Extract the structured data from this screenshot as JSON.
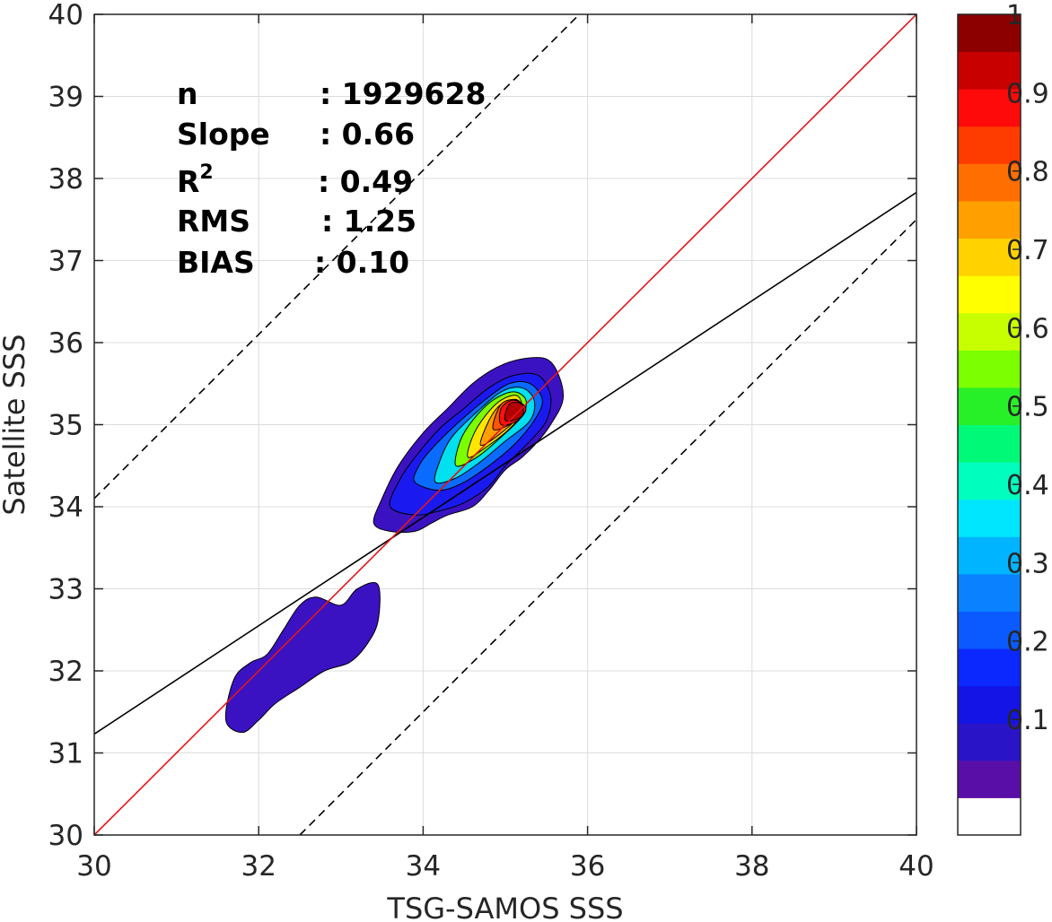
{
  "chart_data": {
    "type": "contour",
    "xlabel": "TSG-SAMOS SSS",
    "ylabel": "Satellite SSS",
    "xlim": [
      30,
      40
    ],
    "ylim": [
      30,
      40
    ],
    "x_ticks": [
      "30",
      "32",
      "34",
      "36",
      "38",
      "40"
    ],
    "y_ticks": [
      "30",
      "31",
      "32",
      "33",
      "34",
      "35",
      "36",
      "37",
      "38",
      "39",
      "40"
    ],
    "grid": true,
    "stats": {
      "n_label": "n",
      "n_value": ": 1929628",
      "slope_label": "Slope",
      "slope_value": ": 0.66",
      "r2_label": "R",
      "r2_sup": "2",
      "r2_value": ": 0.49",
      "rms_label": "RMS",
      "rms_value": ": 1.25",
      "bias_label": "BIAS",
      "bias_value": ": 0.10"
    },
    "lines": {
      "one_to_one": {
        "slope": 1,
        "intercept": 0,
        "color": "#e4141b"
      },
      "fit": {
        "slope": 0.66,
        "intercept": 11.43,
        "color": "#000000"
      },
      "upper_bound": {
        "slope": 1,
        "intercept": 4.1,
        "color": "#000000",
        "style": "dashed"
      },
      "lower_bound": {
        "slope": 1,
        "intercept": -2.5,
        "color": "#000000",
        "style": "dashed"
      }
    },
    "colorbar": {
      "ticks": [
        "0.1",
        "0.2",
        "0.3",
        "0.4",
        "0.5",
        "0.6",
        "0.7",
        "0.8",
        "0.9",
        "1"
      ],
      "levels": [
        0,
        0.05,
        0.1,
        0.15,
        0.2,
        0.25,
        0.3,
        0.35,
        0.4,
        0.45,
        0.5,
        0.55,
        0.6,
        0.65,
        0.7,
        0.75,
        0.8,
        0.85,
        0.9,
        0.95,
        1
      ],
      "colors": [
        "#ffffff",
        "#5a0ea8",
        "#2a14c8",
        "#1414e6",
        "#0a28ff",
        "#0a5aff",
        "#0a82ff",
        "#00b4ff",
        "#00e6ff",
        "#00ffbe",
        "#00fa78",
        "#28f028",
        "#7cff00",
        "#c8ff00",
        "#ffff00",
        "#ffd200",
        "#ffa000",
        "#ff6e00",
        "#ff3c00",
        "#ff0a0a",
        "#c80000",
        "#8c0000"
      ]
    },
    "contours": {
      "main_cluster": {
        "center": [
          35.1,
          35.1
        ],
        "levels": [
          {
            "level": 0.05,
            "color": "#3b12c2",
            "points": [
              [
                33.4,
                33.8
              ],
              [
                33.6,
                33.7
              ],
              [
                33.9,
                33.7
              ],
              [
                34.1,
                33.8
              ],
              [
                34.3,
                33.9
              ],
              [
                34.6,
                34.0
              ],
              [
                34.8,
                34.2
              ],
              [
                35.0,
                34.45
              ],
              [
                35.2,
                34.6
              ],
              [
                35.4,
                34.8
              ],
              [
                35.55,
                35.0
              ],
              [
                35.7,
                35.3
              ],
              [
                35.65,
                35.6
              ],
              [
                35.5,
                35.8
              ],
              [
                35.2,
                35.8
              ],
              [
                34.9,
                35.7
              ],
              [
                34.6,
                35.5
              ],
              [
                34.3,
                35.2
              ],
              [
                34.0,
                34.9
              ],
              [
                33.7,
                34.5
              ],
              [
                33.5,
                34.1
              ]
            ]
          },
          {
            "level": 0.15,
            "color": "#1a1af0",
            "points": [
              [
                33.6,
                34.0
              ],
              [
                33.9,
                33.9
              ],
              [
                34.2,
                33.95
              ],
              [
                34.5,
                34.05
              ],
              [
                34.8,
                34.25
              ],
              [
                35.0,
                34.5
              ],
              [
                35.3,
                34.8
              ],
              [
                35.5,
                35.05
              ],
              [
                35.55,
                35.35
              ],
              [
                35.4,
                35.6
              ],
              [
                35.1,
                35.6
              ],
              [
                34.8,
                35.45
              ],
              [
                34.5,
                35.2
              ],
              [
                34.2,
                34.95
              ],
              [
                33.9,
                34.6
              ],
              [
                33.7,
                34.3
              ]
            ]
          },
          {
            "level": 0.25,
            "color": "#0a6cff",
            "points": [
              [
                33.9,
                34.3
              ],
              [
                34.2,
                34.2
              ],
              [
                34.5,
                34.3
              ],
              [
                34.8,
                34.5
              ],
              [
                35.1,
                34.75
              ],
              [
                35.35,
                35.05
              ],
              [
                35.45,
                35.3
              ],
              [
                35.3,
                35.5
              ],
              [
                35.05,
                35.5
              ],
              [
                34.75,
                35.3
              ],
              [
                34.4,
                35.0
              ],
              [
                34.1,
                34.7
              ],
              [
                33.95,
                34.5
              ]
            ]
          },
          {
            "level": 0.4,
            "color": "#00e0ee",
            "points": [
              [
                34.15,
                34.3
              ],
              [
                34.4,
                34.35
              ],
              [
                34.7,
                34.55
              ],
              [
                35.0,
                34.8
              ],
              [
                35.3,
                35.05
              ],
              [
                35.35,
                35.3
              ],
              [
                35.2,
                35.45
              ],
              [
                34.95,
                35.4
              ],
              [
                34.65,
                35.15
              ],
              [
                34.35,
                34.85
              ],
              [
                34.2,
                34.55
              ]
            ]
          },
          {
            "level": 0.55,
            "color": "#7cff00",
            "points": [
              [
                34.4,
                34.5
              ],
              [
                34.65,
                34.6
              ],
              [
                34.95,
                34.85
              ],
              [
                35.2,
                35.1
              ],
              [
                35.25,
                35.3
              ],
              [
                35.1,
                35.4
              ],
              [
                34.85,
                35.3
              ],
              [
                34.6,
                35.05
              ],
              [
                34.45,
                34.8
              ]
            ]
          },
          {
            "level": 0.65,
            "color": "#ffe600",
            "points": [
              [
                34.55,
                34.6
              ],
              [
                34.8,
                34.75
              ],
              [
                35.05,
                34.95
              ],
              [
                35.2,
                35.15
              ],
              [
                35.15,
                35.35
              ],
              [
                34.95,
                35.3
              ],
              [
                34.75,
                35.1
              ],
              [
                34.6,
                34.85
              ]
            ]
          },
          {
            "level": 0.75,
            "color": "#ffa000",
            "points": [
              [
                34.7,
                34.75
              ],
              [
                34.95,
                34.9
              ],
              [
                35.15,
                35.1
              ],
              [
                35.15,
                35.3
              ],
              [
                34.95,
                35.25
              ],
              [
                34.8,
                35.05
              ]
            ]
          },
          {
            "level": 0.85,
            "color": "#ff5500",
            "points": [
              [
                34.85,
                34.95
              ],
              [
                35.05,
                35.0
              ],
              [
                35.2,
                35.15
              ],
              [
                35.15,
                35.3
              ],
              [
                34.95,
                35.25
              ]
            ]
          },
          {
            "level": 0.92,
            "color": "#ff1010",
            "points": [
              [
                34.95,
                35.0
              ],
              [
                35.15,
                35.05
              ],
              [
                35.25,
                35.2
              ],
              [
                35.1,
                35.3
              ],
              [
                34.95,
                35.2
              ]
            ]
          },
          {
            "level": 1.0,
            "color": "#b40000",
            "points": [
              [
                35.0,
                35.05
              ],
              [
                35.2,
                35.1
              ],
              [
                35.2,
                35.25
              ],
              [
                35.05,
                35.25
              ]
            ]
          }
        ]
      },
      "low_cluster": {
        "level": 0.05,
        "color": "#3b12c2",
        "points": [
          [
            31.6,
            31.4
          ],
          [
            31.8,
            31.25
          ],
          [
            32.0,
            31.4
          ],
          [
            32.2,
            31.6
          ],
          [
            32.5,
            31.8
          ],
          [
            32.8,
            32.0
          ],
          [
            33.1,
            32.1
          ],
          [
            33.3,
            32.3
          ],
          [
            33.45,
            32.6
          ],
          [
            33.45,
            33.05
          ],
          [
            33.2,
            33.0
          ],
          [
            33.0,
            32.8
          ],
          [
            32.7,
            32.9
          ],
          [
            32.5,
            32.8
          ],
          [
            32.3,
            32.5
          ],
          [
            32.1,
            32.2
          ],
          [
            31.9,
            32.1
          ],
          [
            31.7,
            31.9
          ]
        ]
      }
    }
  }
}
